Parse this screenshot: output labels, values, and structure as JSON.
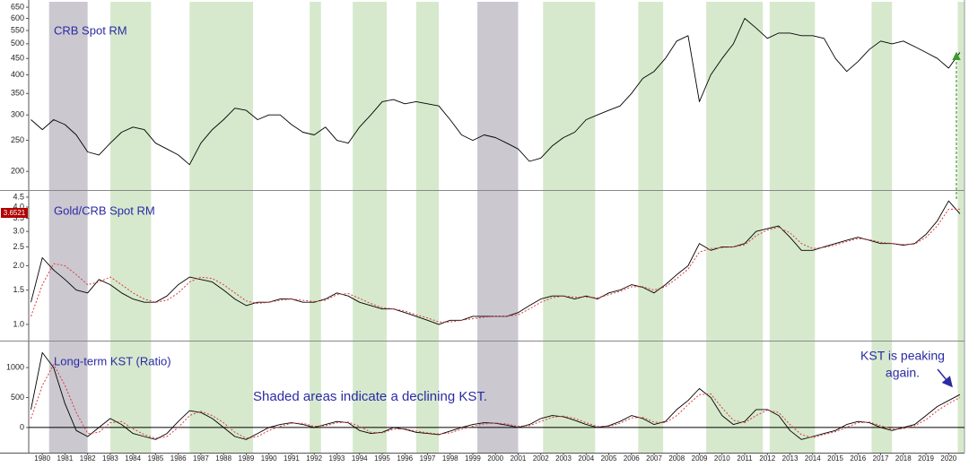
{
  "shaded_regions": [
    {
      "start": 1980.3,
      "end": 1982.0,
      "color": "#cbc8d0"
    },
    {
      "start": 1983.0,
      "end": 1984.8,
      "color": "#d6e9cd"
    },
    {
      "start": 1986.5,
      "end": 1989.3,
      "color": "#d6e9cd"
    },
    {
      "start": 1991.8,
      "end": 1992.3,
      "color": "#d6e9cd"
    },
    {
      "start": 1993.7,
      "end": 1995.2,
      "color": "#d6e9cd"
    },
    {
      "start": 1996.5,
      "end": 1997.5,
      "color": "#d6e9cd"
    },
    {
      "start": 1999.2,
      "end": 2001.0,
      "color": "#cbc8d0"
    },
    {
      "start": 2002.1,
      "end": 2004.4,
      "color": "#d6e9cd"
    },
    {
      "start": 2006.3,
      "end": 2007.4,
      "color": "#d6e9cd"
    },
    {
      "start": 2009.3,
      "end": 2011.8,
      "color": "#d6e9cd"
    },
    {
      "start": 2012.1,
      "end": 2014.1,
      "color": "#d6e9cd"
    },
    {
      "start": 2016.6,
      "end": 2017.5,
      "color": "#d6e9cd"
    },
    {
      "start": 2020.4,
      "end": 2020.7,
      "color": "#d6e9cd"
    }
  ],
  "chart_data": [
    {
      "type": "line",
      "title": "CRB Spot RM",
      "log_scale": true,
      "xlim": [
        1979.4,
        2020.7
      ],
      "ylim": [
        175,
        676
      ],
      "yticks": [
        200,
        250,
        300,
        350,
        400,
        450,
        500,
        550,
        600,
        650
      ],
      "x": [
        1979.5,
        1980,
        1980.5,
        1981,
        1981.5,
        1982,
        1982.5,
        1983,
        1983.5,
        1984,
        1984.5,
        1985,
        1985.5,
        1986,
        1986.5,
        1987,
        1987.5,
        1988,
        1988.5,
        1989,
        1989.5,
        1990,
        1990.5,
        1991,
        1991.5,
        1992,
        1992.5,
        1993,
        1993.5,
        1994,
        1994.5,
        1995,
        1995.5,
        1996,
        1996.5,
        1997,
        1997.5,
        1998,
        1998.5,
        1999,
        1999.5,
        2000,
        2000.5,
        2001,
        2001.5,
        2002,
        2002.5,
        2003,
        2003.5,
        2004,
        2004.5,
        2005,
        2005.5,
        2006,
        2006.5,
        2007,
        2007.5,
        2008,
        2008.5,
        2009,
        2009.5,
        2010,
        2010.5,
        2011,
        2011.5,
        2012,
        2012.5,
        2013,
        2013.5,
        2014,
        2014.5,
        2015,
        2015.5,
        2016,
        2016.5,
        2017,
        2017.5,
        2018,
        2018.5,
        2019,
        2019.5,
        2020,
        2020.5
      ],
      "series": [
        {
          "color": "#000000",
          "dashed": false,
          "values": [
            290,
            270,
            290,
            280,
            260,
            230,
            225,
            245,
            265,
            275,
            270,
            245,
            235,
            225,
            210,
            245,
            270,
            290,
            315,
            310,
            290,
            300,
            300,
            280,
            265,
            260,
            275,
            250,
            245,
            275,
            300,
            330,
            335,
            325,
            330,
            325,
            320,
            290,
            260,
            250,
            260,
            255,
            245,
            235,
            215,
            220,
            240,
            255,
            265,
            290,
            300,
            310,
            320,
            350,
            390,
            410,
            450,
            510,
            530,
            330,
            400,
            450,
            500,
            600,
            560,
            520,
            540,
            540,
            530,
            530,
            520,
            450,
            410,
            440,
            480,
            510,
            500,
            510,
            490,
            470,
            450,
            420,
            470
          ]
        }
      ]
    },
    {
      "type": "line",
      "title": "Gold/CRB Spot RM",
      "log_scale": true,
      "current_value_label": "3.6521",
      "xlim": [
        1979.4,
        2020.7
      ],
      "ylim": [
        0.826,
        4.84
      ],
      "yticks": [
        {
          "value": 1,
          "label": "1.0"
        },
        1.5,
        {
          "value": 2,
          "label": "2.0"
        },
        2.5,
        {
          "value": 3,
          "label": "3.0"
        },
        3.5,
        {
          "value": 4,
          "label": "4.0"
        },
        4.5
      ],
      "x": [
        1979.5,
        1980,
        1980.5,
        1981,
        1981.5,
        1982,
        1982.5,
        1983,
        1983.5,
        1984,
        1984.5,
        1985,
        1985.5,
        1986,
        1986.5,
        1987,
        1987.5,
        1988,
        1988.5,
        1989,
        1989.5,
        1990,
        1990.5,
        1991,
        1991.5,
        1992,
        1992.5,
        1993,
        1993.5,
        1994,
        1994.5,
        1995,
        1995.5,
        1996,
        1996.5,
        1997,
        1997.5,
        1998,
        1998.5,
        1999,
        1999.5,
        2000,
        2000.5,
        2001,
        2001.5,
        2002,
        2002.5,
        2003,
        2003.5,
        2004,
        2004.5,
        2005,
        2005.5,
        2006,
        2006.5,
        2007,
        2007.5,
        2008,
        2008.5,
        2009,
        2009.5,
        2010,
        2010.5,
        2011,
        2011.5,
        2012,
        2012.5,
        2013,
        2013.5,
        2014,
        2014.5,
        2015,
        2015.5,
        2016,
        2016.5,
        2017,
        2017.5,
        2018,
        2018.5,
        2019,
        2019.5,
        2020,
        2020.5
      ],
      "series": [
        {
          "color": "#000000",
          "dashed": false,
          "values": [
            1.3,
            2.2,
            1.9,
            1.7,
            1.5,
            1.45,
            1.7,
            1.6,
            1.45,
            1.35,
            1.3,
            1.3,
            1.4,
            1.6,
            1.75,
            1.7,
            1.65,
            1.5,
            1.35,
            1.25,
            1.3,
            1.3,
            1.35,
            1.35,
            1.3,
            1.3,
            1.35,
            1.45,
            1.4,
            1.3,
            1.25,
            1.2,
            1.2,
            1.15,
            1.1,
            1.05,
            1.0,
            1.05,
            1.05,
            1.1,
            1.1,
            1.1,
            1.1,
            1.15,
            1.25,
            1.35,
            1.4,
            1.4,
            1.35,
            1.4,
            1.35,
            1.45,
            1.5,
            1.6,
            1.55,
            1.45,
            1.6,
            1.8,
            2.0,
            2.6,
            2.4,
            2.5,
            2.5,
            2.6,
            3.0,
            3.1,
            3.2,
            2.8,
            2.4,
            2.4,
            2.5,
            2.6,
            2.7,
            2.8,
            2.7,
            2.6,
            2.6,
            2.55,
            2.6,
            2.9,
            3.4,
            4.3,
            3.7
          ]
        },
        {
          "color": "#e03a3a",
          "dashed": true,
          "values": [
            1.1,
            1.6,
            2.05,
            2.0,
            1.8,
            1.6,
            1.65,
            1.75,
            1.6,
            1.45,
            1.35,
            1.3,
            1.33,
            1.45,
            1.65,
            1.75,
            1.72,
            1.6,
            1.45,
            1.32,
            1.28,
            1.3,
            1.33,
            1.35,
            1.33,
            1.31,
            1.33,
            1.42,
            1.44,
            1.36,
            1.28,
            1.22,
            1.2,
            1.17,
            1.12,
            1.08,
            1.03,
            1.03,
            1.05,
            1.07,
            1.09,
            1.1,
            1.1,
            1.12,
            1.2,
            1.3,
            1.37,
            1.4,
            1.38,
            1.38,
            1.37,
            1.42,
            1.48,
            1.56,
            1.56,
            1.5,
            1.56,
            1.72,
            1.92,
            2.35,
            2.45,
            2.48,
            2.5,
            2.56,
            2.85,
            3.05,
            3.15,
            2.95,
            2.6,
            2.45,
            2.48,
            2.56,
            2.66,
            2.76,
            2.72,
            2.64,
            2.6,
            2.57,
            2.58,
            2.8,
            3.2,
            3.9,
            3.9
          ]
        }
      ]
    },
    {
      "type": "line",
      "title": "Long-term KST (Ratio)",
      "log_scale": false,
      "zero_line": true,
      "annotations": [
        "Shaded areas indicate a declining KST.",
        "KST is peaking",
        "again."
      ],
      "xlim": [
        1979.4,
        2020.7
      ],
      "ylim": [
        -420,
        1420
      ],
      "yticks": [
        0,
        500,
        1000
      ],
      "xticks": [
        1980,
        1981,
        1982,
        1983,
        1984,
        1985,
        1986,
        1987,
        1988,
        1989,
        1990,
        1991,
        1992,
        1993,
        1994,
        1995,
        1996,
        1997,
        1998,
        1999,
        2000,
        2001,
        2002,
        2003,
        2004,
        2005,
        2006,
        2007,
        2008,
        2009,
        2010,
        2011,
        2012,
        2013,
        2014,
        2015,
        2016,
        2017,
        2018,
        2019,
        2020
      ],
      "x": [
        1979.5,
        1980,
        1980.5,
        1981,
        1981.5,
        1982,
        1982.5,
        1983,
        1983.5,
        1984,
        1984.5,
        1985,
        1985.5,
        1986,
        1986.5,
        1987,
        1987.5,
        1988,
        1988.5,
        1989,
        1989.5,
        1990,
        1990.5,
        1991,
        1991.5,
        1992,
        1992.5,
        1993,
        1993.5,
        1994,
        1994.5,
        1995,
        1995.5,
        1996,
        1996.5,
        1997,
        1997.5,
        1998,
        1998.5,
        1999,
        1999.5,
        2000,
        2000.5,
        2001,
        2001.5,
        2002,
        2002.5,
        2003,
        2003.5,
        2004,
        2004.5,
        2005,
        2005.5,
        2006,
        2006.5,
        2007,
        2007.5,
        2008,
        2008.5,
        2009,
        2009.5,
        2010,
        2010.5,
        2011,
        2011.5,
        2012,
        2012.5,
        2013,
        2013.5,
        2014,
        2014.5,
        2015,
        2015.5,
        2016,
        2016.5,
        2017,
        2017.5,
        2018,
        2018.5,
        2019,
        2019.5,
        2020,
        2020.5
      ],
      "series": [
        {
          "color": "#000000",
          "dashed": false,
          "values": [
            300,
            1250,
            1000,
            400,
            -50,
            -150,
            0,
            150,
            50,
            -100,
            -150,
            -200,
            -100,
            100,
            280,
            250,
            150,
            0,
            -150,
            -200,
            -100,
            0,
            50,
            80,
            50,
            0,
            50,
            100,
            80,
            -50,
            -100,
            -80,
            0,
            -30,
            -80,
            -100,
            -120,
            -60,
            0,
            50,
            80,
            70,
            40,
            0,
            50,
            150,
            200,
            180,
            120,
            50,
            0,
            30,
            100,
            200,
            150,
            50,
            100,
            300,
            450,
            650,
            500,
            200,
            50,
            100,
            300,
            300,
            200,
            -50,
            -200,
            -150,
            -100,
            -50,
            50,
            100,
            80,
            0,
            -50,
            0,
            50,
            200,
            350,
            450,
            550
          ]
        },
        {
          "color": "#e03a3a",
          "dashed": true,
          "values": [
            150,
            700,
            1050,
            700,
            250,
            -100,
            -80,
            80,
            100,
            -20,
            -120,
            -180,
            -150,
            0,
            200,
            270,
            200,
            80,
            -80,
            -180,
            -150,
            -50,
            20,
            70,
            70,
            20,
            30,
            80,
            90,
            20,
            -80,
            -90,
            -30,
            -20,
            -60,
            -90,
            -110,
            -90,
            -30,
            20,
            60,
            75,
            60,
            20,
            30,
            100,
            170,
            190,
            150,
            80,
            20,
            20,
            70,
            160,
            170,
            90,
            80,
            200,
            380,
            550,
            560,
            330,
            120,
            80,
            200,
            290,
            250,
            50,
            -120,
            -170,
            -120,
            -70,
            0,
            80,
            90,
            30,
            -30,
            -20,
            30,
            130,
            280,
            400,
            500
          ]
        }
      ]
    }
  ]
}
